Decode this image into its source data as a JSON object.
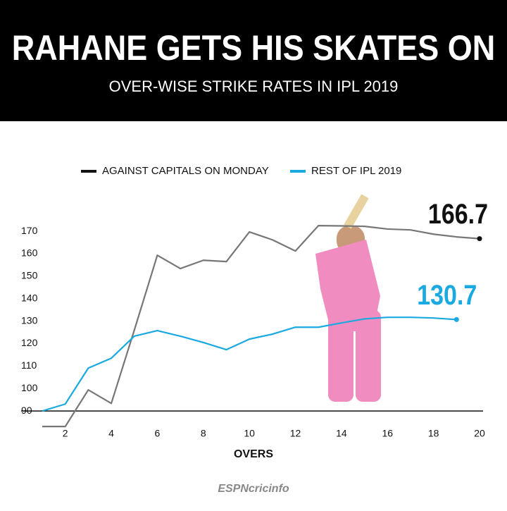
{
  "chart_data": {
    "type": "line",
    "title": "RAHANE GETS HIS SKATES ON",
    "subtitle": "OVER-WISE STRIKE RATES IN IPL 2019",
    "x_label": "OVERS",
    "source": "ESPNcricinfo",
    "x": [
      1,
      2,
      3,
      4,
      5,
      6,
      7,
      8,
      9,
      10,
      11,
      12,
      13,
      14,
      15,
      16,
      17,
      18,
      19,
      20
    ],
    "series": [
      {
        "name": "AGAINST CAPITALS ON MONDAY",
        "color": "#777777",
        "values": [
          83.1,
          83.1,
          99.4,
          93.4,
          126,
          159.3,
          153.4,
          157.1,
          156.5,
          169.7,
          166.2,
          161.2,
          172.5,
          172.4,
          172.2,
          171,
          170.6,
          168.7,
          167.5,
          166.7
        ]
      },
      {
        "name": "REST OF IPL 2019",
        "color": "#1aa9e0",
        "values": [
          90,
          93.1,
          109.1,
          113.5,
          123.3,
          125.8,
          123.3,
          120.5,
          117.3,
          122,
          124.2,
          127.3,
          127.3,
          129.2,
          131,
          131.7,
          131.7,
          131.4,
          130.7,
          null
        ]
      }
    ],
    "xlim": [
      1,
      20
    ],
    "xticks": [
      2,
      4,
      6,
      8,
      10,
      12,
      14,
      16,
      18,
      20
    ],
    "ylim": [
      80,
      176
    ],
    "yticks": [
      90,
      100,
      110,
      120,
      130,
      140,
      150,
      160,
      170
    ],
    "grid": false
  }
}
